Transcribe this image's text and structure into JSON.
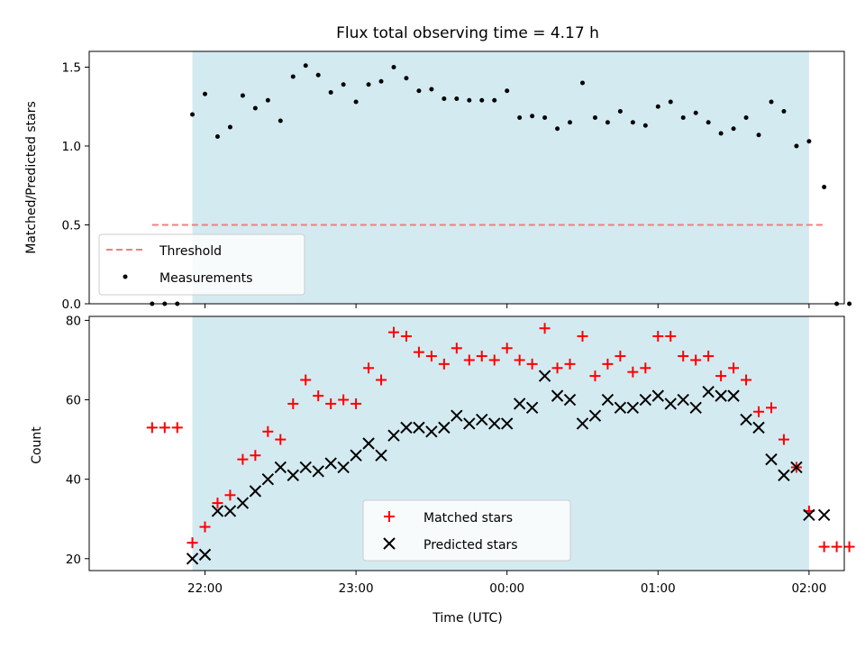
{
  "title": "Flux total observing time = 4.17 h",
  "chart_data": [
    {
      "type": "scatter",
      "title": "Flux total observing time = 4.17 h",
      "xlabel": "",
      "ylabel": "Matched/Predicted stars",
      "xlim": [
        "21:14",
        "02:14"
      ],
      "ylim": [
        0,
        1.6
      ],
      "yticks": [
        "0.0",
        "0.5",
        "1.0",
        "1.5"
      ],
      "shaded_interval": [
        "21:55",
        "02:00"
      ],
      "shade_color": "#d4eaf1",
      "threshold": {
        "name": "Threshold",
        "value": 0.5,
        "x_range": [
          "21:39",
          "02:06"
        ],
        "color": "#f07f7f"
      },
      "measurements": {
        "name": "Measurements",
        "color": "#000000",
        "points": [
          [
            "21:39",
            0.0
          ],
          [
            "21:44",
            0.0
          ],
          [
            "21:49",
            0.0
          ],
          [
            "21:55",
            1.2
          ],
          [
            "22:00",
            1.33
          ],
          [
            "22:05",
            1.06
          ],
          [
            "22:10",
            1.12
          ],
          [
            "22:15",
            1.32
          ],
          [
            "22:20",
            1.24
          ],
          [
            "22:25",
            1.29
          ],
          [
            "22:30",
            1.16
          ],
          [
            "22:35",
            1.44
          ],
          [
            "22:40",
            1.51
          ],
          [
            "22:45",
            1.45
          ],
          [
            "22:50",
            1.34
          ],
          [
            "22:55",
            1.39
          ],
          [
            "23:00",
            1.28
          ],
          [
            "23:05",
            1.39
          ],
          [
            "23:10",
            1.41
          ],
          [
            "23:15",
            1.5
          ],
          [
            "23:20",
            1.43
          ],
          [
            "23:25",
            1.35
          ],
          [
            "23:30",
            1.36
          ],
          [
            "23:35",
            1.3
          ],
          [
            "23:40",
            1.3
          ],
          [
            "23:45",
            1.29
          ],
          [
            "23:50",
            1.29
          ],
          [
            "23:55",
            1.29
          ],
          [
            "00:00",
            1.35
          ],
          [
            "00:05",
            1.18
          ],
          [
            "00:10",
            1.19
          ],
          [
            "00:15",
            1.18
          ],
          [
            "00:20",
            1.11
          ],
          [
            "00:25",
            1.15
          ],
          [
            "00:30",
            1.4
          ],
          [
            "00:35",
            1.18
          ],
          [
            "00:40",
            1.15
          ],
          [
            "00:45",
            1.22
          ],
          [
            "00:50",
            1.15
          ],
          [
            "00:55",
            1.13
          ],
          [
            "01:00",
            1.25
          ],
          [
            "01:05",
            1.28
          ],
          [
            "01:10",
            1.18
          ],
          [
            "01:15",
            1.21
          ],
          [
            "01:20",
            1.15
          ],
          [
            "01:25",
            1.08
          ],
          [
            "01:30",
            1.11
          ],
          [
            "01:35",
            1.18
          ],
          [
            "01:40",
            1.07
          ],
          [
            "01:45",
            1.28
          ],
          [
            "01:50",
            1.22
          ],
          [
            "01:55",
            1.0
          ],
          [
            "02:00",
            1.03
          ],
          [
            "02:06",
            0.74
          ],
          [
            "02:11",
            0.0
          ],
          [
            "02:16",
            0.0
          ]
        ]
      },
      "legend": [
        "Threshold",
        "Measurements"
      ],
      "legend_loc": "lower-left"
    },
    {
      "type": "scatter",
      "xlabel": "Time (UTC)",
      "ylabel": "Count",
      "xticks": [
        "22:00",
        "23:00",
        "00:00",
        "01:00",
        "02:00"
      ],
      "xlim": [
        "21:14",
        "02:14"
      ],
      "ylim": [
        17,
        81
      ],
      "yticks": [
        "20",
        "40",
        "60",
        "80"
      ],
      "shaded_interval": [
        "21:55",
        "02:00"
      ],
      "shade_color": "#d4eaf1",
      "series": [
        {
          "name": "Matched stars",
          "marker": "+",
          "color": "#ff0000",
          "points": [
            [
              "21:39",
              53
            ],
            [
              "21:44",
              53
            ],
            [
              "21:49",
              53
            ],
            [
              "21:55",
              24
            ],
            [
              "22:00",
              28
            ],
            [
              "22:05",
              34
            ],
            [
              "22:10",
              36
            ],
            [
              "22:15",
              45
            ],
            [
              "22:20",
              46
            ],
            [
              "22:25",
              52
            ],
            [
              "22:30",
              50
            ],
            [
              "22:35",
              59
            ],
            [
              "22:40",
              65
            ],
            [
              "22:45",
              61
            ],
            [
              "22:50",
              59
            ],
            [
              "22:55",
              60
            ],
            [
              "23:00",
              59
            ],
            [
              "23:05",
              68
            ],
            [
              "23:10",
              65
            ],
            [
              "23:15",
              77
            ],
            [
              "23:20",
              76
            ],
            [
              "23:25",
              72
            ],
            [
              "23:30",
              71
            ],
            [
              "23:35",
              69
            ],
            [
              "23:40",
              73
            ],
            [
              "23:45",
              70
            ],
            [
              "23:50",
              71
            ],
            [
              "23:55",
              70
            ],
            [
              "00:00",
              73
            ],
            [
              "00:05",
              70
            ],
            [
              "00:10",
              69
            ],
            [
              "00:15",
              78
            ],
            [
              "00:20",
              68
            ],
            [
              "00:25",
              69
            ],
            [
              "00:30",
              76
            ],
            [
              "00:35",
              66
            ],
            [
              "00:40",
              69
            ],
            [
              "00:45",
              71
            ],
            [
              "00:50",
              67
            ],
            [
              "00:55",
              68
            ],
            [
              "01:00",
              76
            ],
            [
              "01:05",
              76
            ],
            [
              "01:10",
              71
            ],
            [
              "01:15",
              70
            ],
            [
              "01:20",
              71
            ],
            [
              "01:25",
              66
            ],
            [
              "01:30",
              68
            ],
            [
              "01:35",
              65
            ],
            [
              "01:40",
              57
            ],
            [
              "01:45",
              58
            ],
            [
              "01:50",
              50
            ],
            [
              "01:55",
              43
            ],
            [
              "02:00",
              32
            ],
            [
              "02:06",
              23
            ],
            [
              "02:11",
              23
            ],
            [
              "02:16",
              23
            ]
          ]
        },
        {
          "name": "Predicted stars",
          "marker": "x",
          "color": "#000000",
          "points": [
            [
              "21:55",
              20
            ],
            [
              "22:00",
              21
            ],
            [
              "22:05",
              32
            ],
            [
              "22:10",
              32
            ],
            [
              "22:15",
              34
            ],
            [
              "22:20",
              37
            ],
            [
              "22:25",
              40
            ],
            [
              "22:30",
              43
            ],
            [
              "22:35",
              41
            ],
            [
              "22:40",
              43
            ],
            [
              "22:45",
              42
            ],
            [
              "22:50",
              44
            ],
            [
              "22:55",
              43
            ],
            [
              "23:00",
              46
            ],
            [
              "23:05",
              49
            ],
            [
              "23:10",
              46
            ],
            [
              "23:15",
              51
            ],
            [
              "23:20",
              53
            ],
            [
              "23:25",
              53
            ],
            [
              "23:30",
              52
            ],
            [
              "23:35",
              53
            ],
            [
              "23:40",
              56
            ],
            [
              "23:45",
              54
            ],
            [
              "23:50",
              55
            ],
            [
              "23:55",
              54
            ],
            [
              "00:00",
              54
            ],
            [
              "00:05",
              59
            ],
            [
              "00:10",
              58
            ],
            [
              "00:15",
              66
            ],
            [
              "00:20",
              61
            ],
            [
              "00:25",
              60
            ],
            [
              "00:30",
              54
            ],
            [
              "00:35",
              56
            ],
            [
              "00:40",
              60
            ],
            [
              "00:45",
              58
            ],
            [
              "00:50",
              58
            ],
            [
              "00:55",
              60
            ],
            [
              "01:00",
              61
            ],
            [
              "01:05",
              59
            ],
            [
              "01:10",
              60
            ],
            [
              "01:15",
              58
            ],
            [
              "01:20",
              62
            ],
            [
              "01:25",
              61
            ],
            [
              "01:30",
              61
            ],
            [
              "01:35",
              55
            ],
            [
              "01:40",
              53
            ],
            [
              "01:45",
              45
            ],
            [
              "01:50",
              41
            ],
            [
              "01:55",
              43
            ],
            [
              "02:00",
              31
            ],
            [
              "02:06",
              31
            ]
          ]
        }
      ],
      "legend": [
        "Matched stars",
        "Predicted stars"
      ],
      "legend_loc": "lower-center"
    }
  ]
}
